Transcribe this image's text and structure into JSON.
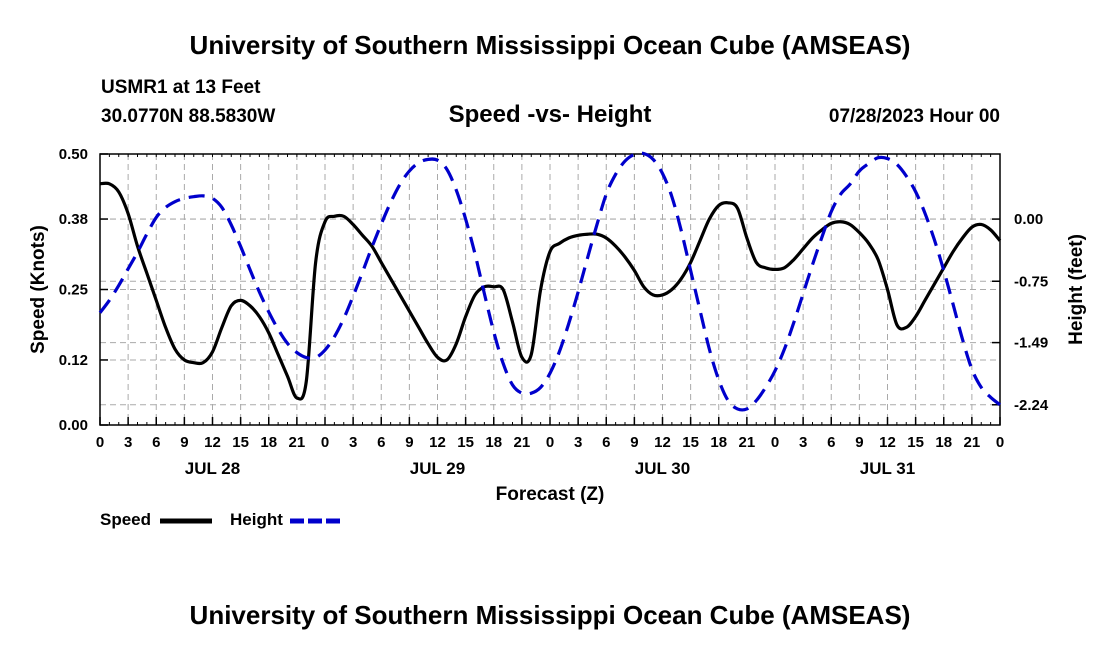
{
  "header": {
    "title": "University of Southern Mississippi Ocean Cube (AMSEAS)",
    "station_line": "USMR1 at 13 Feet",
    "coords": "30.0770N  88.5830W",
    "chart_subtitle": "Speed -vs- Height",
    "timestamp": "07/28/2023 Hour 00"
  },
  "footer": {
    "title": "University of Southern Mississippi Ocean Cube (AMSEAS)"
  },
  "legend": {
    "speed_label": "Speed",
    "height_label": "Height"
  },
  "colors": {
    "speed": "#000000",
    "height": "#0000cc",
    "grid": "#aaaaaa"
  },
  "chart_data": {
    "type": "line",
    "title": "Speed -vs- Height",
    "xlabel": "Forecast (Z)",
    "ylabel_left": "Speed (Knots)",
    "ylabel_right": "Height (feet)",
    "x_range_hours": [
      0,
      96
    ],
    "x_tick_labels": [
      "0",
      "3",
      "6",
      "9",
      "12",
      "15",
      "18",
      "21",
      "0",
      "3",
      "6",
      "9",
      "12",
      "15",
      "18",
      "21",
      "0",
      "3",
      "6",
      "9",
      "12",
      "15",
      "18",
      "21",
      "0",
      "3",
      "6",
      "9",
      "12",
      "15",
      "18",
      "21",
      "0"
    ],
    "day_labels": [
      {
        "label": "JUL 28",
        "hour": 12
      },
      {
        "label": "JUL 29",
        "hour": 36
      },
      {
        "label": "JUL 30",
        "hour": 60
      },
      {
        "label": "JUL 31",
        "hour": 84
      }
    ],
    "y_left": {
      "min": 0.0,
      "max": 0.5,
      "ticks": [
        0.0,
        0.12,
        0.25,
        0.38,
        0.5
      ],
      "tick_labels": [
        "0.00",
        "0.12",
        "0.25",
        "0.38",
        "0.50"
      ]
    },
    "y_right": {
      "min": -2.484,
      "max": 0.785,
      "ticks": [
        0.0,
        -0.75,
        -1.49,
        -2.24
      ],
      "tick_labels": [
        "0.00",
        "-0.75",
        "-1.49",
        "-2.24"
      ]
    },
    "series": [
      {
        "name": "Speed",
        "axis": "left",
        "style": "solid",
        "x": [
          0,
          1,
          2,
          3,
          4,
          5,
          6,
          7,
          8,
          9,
          10,
          11,
          12,
          13,
          14,
          15,
          16,
          17,
          18,
          19,
          20,
          21,
          22,
          23,
          24,
          25,
          26,
          27,
          28,
          29,
          30,
          31,
          32,
          33,
          34,
          35,
          36,
          37,
          38,
          39,
          40,
          41,
          42,
          43,
          44,
          45,
          46,
          47,
          48,
          49,
          50,
          51,
          52,
          53,
          54,
          55,
          56,
          57,
          58,
          59,
          60,
          61,
          62,
          63,
          64,
          65,
          66,
          67,
          68,
          69,
          70,
          71,
          72,
          73,
          74,
          75,
          76,
          77,
          78,
          79,
          80,
          81,
          82,
          83,
          84,
          85,
          86,
          87,
          88,
          89,
          90,
          91,
          92,
          93,
          94,
          95,
          96
        ],
        "values": [
          0.445,
          0.445,
          0.43,
          0.39,
          0.33,
          0.28,
          0.23,
          0.18,
          0.14,
          0.12,
          0.115,
          0.115,
          0.135,
          0.18,
          0.22,
          0.23,
          0.22,
          0.2,
          0.17,
          0.13,
          0.09,
          0.05,
          0.08,
          0.3,
          0.375,
          0.385,
          0.385,
          0.37,
          0.35,
          0.33,
          0.3,
          0.27,
          0.24,
          0.21,
          0.18,
          0.15,
          0.125,
          0.12,
          0.15,
          0.2,
          0.24,
          0.255,
          0.255,
          0.25,
          0.19,
          0.125,
          0.13,
          0.25,
          0.32,
          0.335,
          0.345,
          0.35,
          0.352,
          0.352,
          0.345,
          0.33,
          0.31,
          0.285,
          0.255,
          0.24,
          0.24,
          0.25,
          0.27,
          0.3,
          0.34,
          0.38,
          0.405,
          0.41,
          0.4,
          0.345,
          0.3,
          0.29,
          0.287,
          0.29,
          0.305,
          0.325,
          0.345,
          0.36,
          0.372,
          0.375,
          0.37,
          0.355,
          0.335,
          0.305,
          0.25,
          0.185,
          0.18,
          0.2,
          0.23,
          0.26,
          0.29,
          0.32,
          0.345,
          0.365,
          0.37,
          0.36,
          0.34
        ]
      },
      {
        "name": "Height",
        "axis": "right",
        "style": "dashed",
        "x": [
          0,
          1,
          2,
          3,
          4,
          5,
          6,
          7,
          8,
          9,
          10,
          11,
          12,
          13,
          14,
          15,
          16,
          17,
          18,
          19,
          20,
          21,
          22,
          23,
          24,
          25,
          26,
          27,
          28,
          29,
          30,
          31,
          32,
          33,
          34,
          35,
          36,
          37,
          38,
          39,
          40,
          41,
          42,
          43,
          44,
          45,
          46,
          47,
          48,
          49,
          50,
          51,
          52,
          53,
          54,
          55,
          56,
          57,
          58,
          59,
          60,
          61,
          62,
          63,
          64,
          65,
          66,
          67,
          68,
          69,
          70,
          71,
          72,
          73,
          74,
          75,
          76,
          77,
          78,
          79,
          80,
          81,
          82,
          83,
          84,
          85,
          86,
          87,
          88,
          89,
          90,
          91,
          92,
          93,
          94,
          95,
          96
        ],
        "values": [
          -1.13,
          -0.98,
          -0.8,
          -0.6,
          -0.4,
          -0.18,
          0.02,
          0.14,
          0.21,
          0.25,
          0.27,
          0.28,
          0.25,
          0.14,
          -0.07,
          -0.33,
          -0.61,
          -0.88,
          -1.12,
          -1.33,
          -1.5,
          -1.61,
          -1.67,
          -1.67,
          -1.58,
          -1.42,
          -1.2,
          -0.93,
          -0.64,
          -0.34,
          -0.06,
          0.2,
          0.42,
          0.58,
          0.68,
          0.72,
          0.71,
          0.6,
          0.35,
          0.0,
          -0.42,
          -0.9,
          -1.36,
          -1.74,
          -2.0,
          -2.1,
          -2.1,
          -2.03,
          -1.86,
          -1.6,
          -1.26,
          -0.88,
          -0.47,
          -0.07,
          0.3,
          0.54,
          0.7,
          0.78,
          0.79,
          0.72,
          0.55,
          0.27,
          -0.14,
          -0.62,
          -1.1,
          -1.57,
          -1.94,
          -2.19,
          -2.29,
          -2.29,
          -2.19,
          -2.03,
          -1.83,
          -1.57,
          -1.25,
          -0.9,
          -0.55,
          -0.22,
          0.09,
          0.3,
          0.42,
          0.58,
          0.67,
          0.74,
          0.73,
          0.66,
          0.52,
          0.33,
          0.07,
          -0.25,
          -0.62,
          -1.03,
          -1.45,
          -1.81,
          -2.03,
          -2.15,
          -2.24
        ]
      }
    ]
  }
}
